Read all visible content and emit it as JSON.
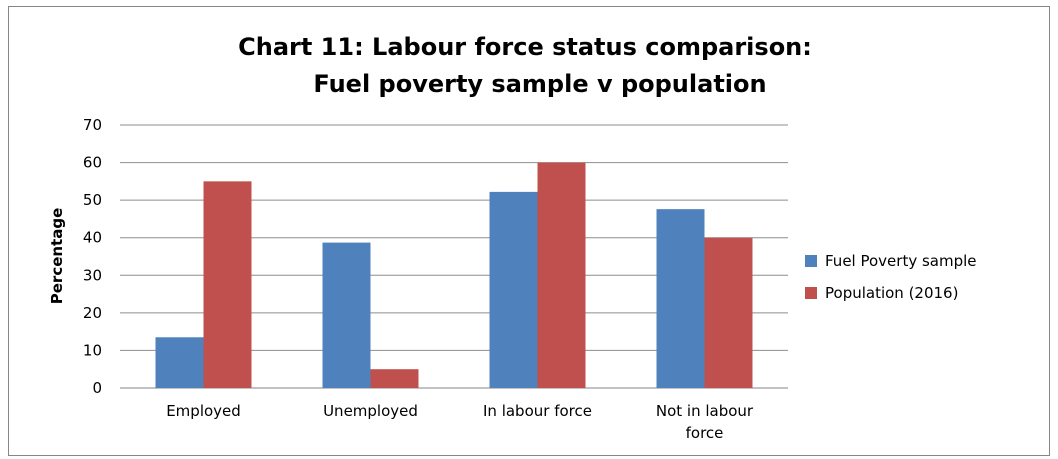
{
  "chart_data": {
    "type": "bar",
    "title_lines": [
      "Chart 11: Labour force status comparison:",
      "Fuel poverty sample v population"
    ],
    "ylabel": "Percentage",
    "xlabel": "",
    "ylim": [
      0,
      70
    ],
    "yticks": [
      0,
      10,
      20,
      30,
      40,
      50,
      60,
      70
    ],
    "grid": true,
    "legend_position": "right",
    "categories": [
      [
        "Employed"
      ],
      [
        "Unemployed"
      ],
      [
        "In labour force"
      ],
      [
        "Not in labour",
        "force"
      ]
    ],
    "series": [
      {
        "name": "Fuel Poverty sample",
        "color": "#4f81bd",
        "values": [
          13.5,
          38.7,
          52.2,
          47.6
        ]
      },
      {
        "name": "Population (2016)",
        "color": "#c0504d",
        "values": [
          55,
          5,
          60,
          40
        ]
      }
    ]
  }
}
